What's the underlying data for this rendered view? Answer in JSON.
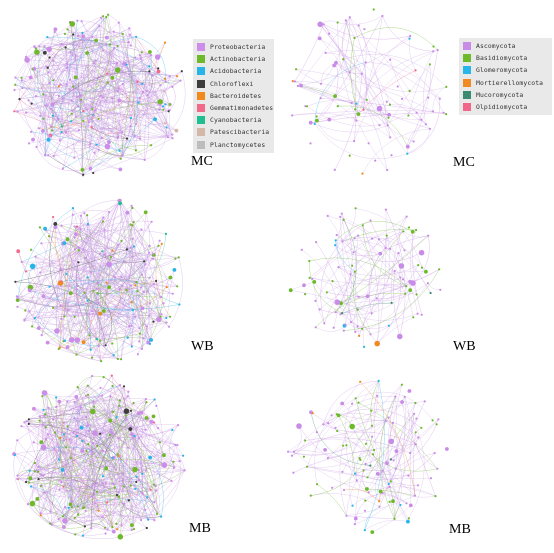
{
  "colors": {
    "bacteria": [
      "#cc8ee8",
      "#6fb82a",
      "#27b4e8",
      "#3d3d3d",
      "#f0891e",
      "#f26a8a",
      "#1fbf8f",
      "#d3b7a8",
      "#bdbdbd"
    ],
    "fungi": [
      "#c98ce6",
      "#6cba2a",
      "#28b6ea",
      "#f08a24",
      "#3a8b6f",
      "#f2668a"
    ],
    "bacteria_edge": "#b98fd6",
    "fungi_edge": "#c39be0"
  },
  "legends": {
    "bacteria": {
      "items": [
        {
          "label": "Proteobacteria",
          "color": "#cc8ee8"
        },
        {
          "label": "Actinobacteria",
          "color": "#6fb82a"
        },
        {
          "label": "Acidobacteria",
          "color": "#27b4e8"
        },
        {
          "label": "Chloroflexi",
          "color": "#3d3d3d"
        },
        {
          "label": "Bacteroidetes",
          "color": "#f0891e"
        },
        {
          "label": "Gemmatimonadetes",
          "color": "#f26a8a"
        },
        {
          "label": "Cyanobacteria",
          "color": "#1fbf8f"
        },
        {
          "label": "Patescibacteria",
          "color": "#d3b7a8"
        },
        {
          "label": "Planctomycetes",
          "color": "#bdbdbd"
        }
      ]
    },
    "fungi": {
      "items": [
        {
          "label": "Ascomycota",
          "color": "#c98ce6"
        },
        {
          "label": "Basidiomycota",
          "color": "#6cba2a"
        },
        {
          "label": "Glomeromycota",
          "color": "#28b6ea"
        },
        {
          "label": "Mortierellomycota",
          "color": "#f08a24"
        },
        {
          "label": "Mucoromycota",
          "color": "#3a8b6f"
        },
        {
          "label": "Olpidiomycota",
          "color": "#f2668a"
        }
      ]
    }
  },
  "panels": [
    {
      "name": "bacteria-mc",
      "label": "MC",
      "kind": "bacteria"
    },
    {
      "name": "fungi-mc",
      "label": "MC",
      "kind": "fungi"
    },
    {
      "name": "bacteria-wb",
      "label": "WB",
      "kind": "bacteria"
    },
    {
      "name": "fungi-wb",
      "label": "WB",
      "kind": "fungi"
    },
    {
      "name": "bacteria-mb",
      "label": "MB",
      "kind": "bacteria"
    },
    {
      "name": "fungi-mb",
      "label": "MB",
      "kind": "fungi"
    }
  ]
}
